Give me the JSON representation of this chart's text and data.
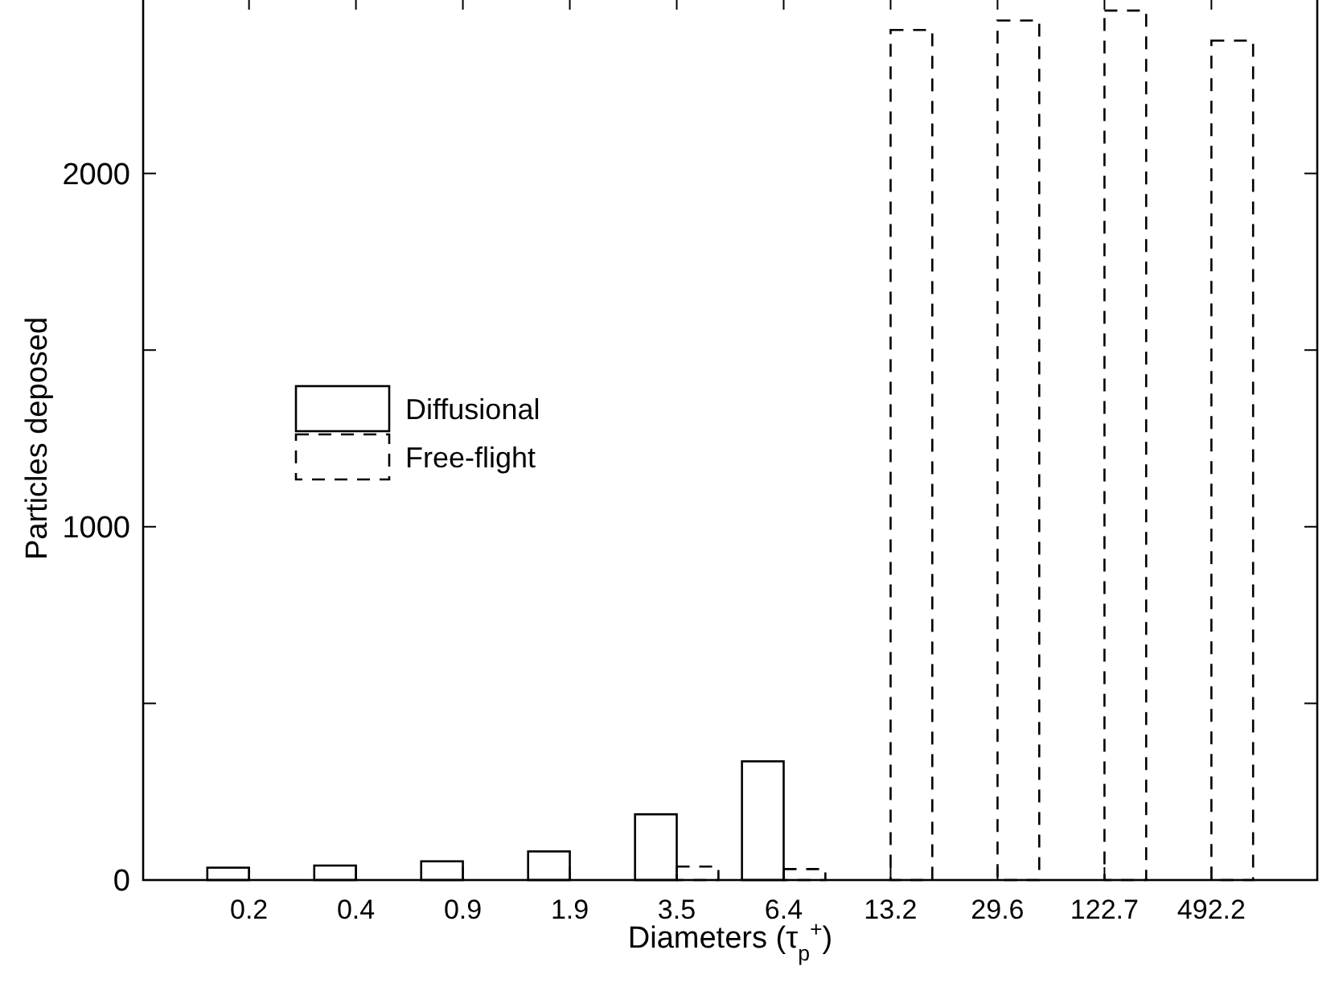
{
  "chart_data": {
    "type": "bar",
    "xlabel": "Diameters (τ$_{p}$$^{+}$)",
    "ylabel": "Particles deposed",
    "categories": [
      "0.2",
      "0.4",
      "0.9",
      "1.9",
      "3.5",
      "6.4",
      "13.2",
      "29.6",
      "122.7",
      "492.2"
    ],
    "series": [
      {
        "name": "Diffusional",
        "color": "#000000",
        "line_style": "solid",
        "values": [
          35,
          41,
          53,
          81,
          186,
          336,
          0,
          0,
          0,
          0
        ]
      },
      {
        "name": "Free-flight",
        "color": "#000000",
        "line_style": "dashed",
        "values": [
          0,
          0,
          0,
          0,
          38,
          31,
          2406,
          2433,
          2461,
          2376
        ]
      }
    ],
    "ylim": [
      0,
      2500
    ],
    "yticks": [
      0,
      {
        "value": 500,
        "label": null
      },
      1000,
      {
        "value": 1500,
        "label": null
      },
      2000
    ],
    "grid": false,
    "legend": "left"
  }
}
